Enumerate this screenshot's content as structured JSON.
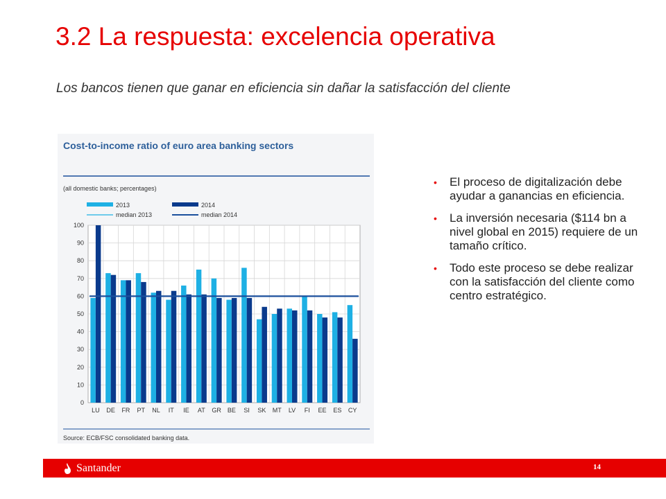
{
  "slide": {
    "title": "3.2 La respuesta: excelencia operativa",
    "subtitle": "Los bancos tienen que ganar en eficiencia sin dañar la satisfacción del cliente",
    "bullets": [
      "El proceso de digitalización debe ayudar a ganancias en eficiencia.",
      "La inversión necesaria ($114 bn a nivel global en 2015) requiere de un tamaño crítico.",
      "Todo este proceso se debe realizar con la satisfacción del cliente como centro estratégico."
    ],
    "page_number": "14"
  },
  "footer": {
    "brand": "Santander",
    "brand_icon": "flame-icon"
  },
  "colors": {
    "accent": "#e60000",
    "series_2013": "#1eb0e4",
    "series_2014": "#0a3a8c",
    "median_2014": "#1a4f9c"
  },
  "chart_data": {
    "type": "bar",
    "title": "Cost-to-income ratio of euro area banking sectors",
    "subtitle": "(all domestic banks; percentages)",
    "source": "Source: ECB/FSC consolidated banking data.",
    "categories": [
      "LU",
      "DE",
      "FR",
      "PT",
      "NL",
      "IT",
      "IE",
      "AT",
      "GR",
      "BE",
      "SI",
      "SK",
      "MT",
      "LV",
      "FI",
      "EE",
      "ES",
      "CY"
    ],
    "series": [
      {
        "name": "2013",
        "values": [
          59,
          73,
          69,
          73,
          62,
          58,
          66,
          75,
          70,
          58,
          76,
          47,
          50,
          53,
          60,
          50,
          51,
          55
        ]
      },
      {
        "name": "2014",
        "values": [
          100,
          72,
          69,
          68,
          63,
          63,
          61,
          61,
          59,
          59,
          59,
          54,
          53,
          52,
          52,
          48,
          48,
          36
        ]
      }
    ],
    "legend_median_2013": "median 2013",
    "legend_median_2014": "median 2014",
    "median_2013": 60,
    "median_2014": 60,
    "yticks": [
      0,
      10,
      20,
      30,
      40,
      50,
      60,
      70,
      80,
      90,
      100
    ],
    "ylim": [
      0,
      100
    ],
    "grid": true,
    "legend_position": "top"
  }
}
